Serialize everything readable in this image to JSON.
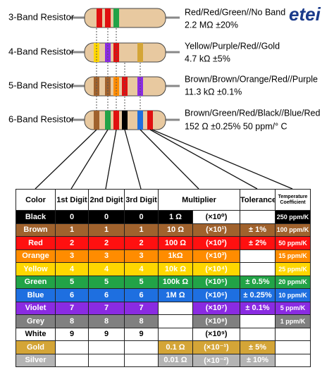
{
  "logo": "etei",
  "resistors": [
    {
      "label": "3-Band Resistor",
      "bands": "Red/Red/Green//No Band",
      "value": "2.2 MΩ ±20%"
    },
    {
      "label": "4-Band Resistor",
      "bands": "Yellow/Purple/Red//Gold",
      "value": "4.7 kΩ ±5%"
    },
    {
      "label": "5-Band Resistor",
      "bands": "Brown/Brown/Orange/Red//Purple",
      "value": "11.3 kΩ ±0.1%"
    },
    {
      "label": "6-Band Resistor",
      "bands": "Brown/Green/Red/Black//Blue/Red",
      "value": "152 Ω ±0.25% 50 ppm/° C"
    }
  ],
  "table": {
    "headers": [
      "Color",
      "1st Digit",
      "2nd Digit",
      "3rd Digit",
      "Multiplier",
      "Tolerance",
      "Temperature Coefficient"
    ],
    "rows": [
      {
        "color": "Black",
        "fill": "#000000",
        "text": "#ffffff",
        "digits": [
          "0",
          "0",
          "0"
        ],
        "multiplier": "1 Ω",
        "exponent": "(×10⁰)",
        "tolerance": null,
        "temperature": "250 ppm/K"
      },
      {
        "color": "Brown",
        "fill": "#a0622d",
        "text": "#ffffff",
        "digits": [
          "1",
          "1",
          "1"
        ],
        "multiplier": "10 Ω",
        "exponent": "(×10¹)",
        "tolerance": "± 1%",
        "temperature": "100 ppm/K"
      },
      {
        "color": "Red",
        "fill": "#ff1010",
        "text": "#ffffff",
        "digits": [
          "2",
          "2",
          "2"
        ],
        "multiplier": "100 Ω",
        "exponent": "(×10²)",
        "tolerance": "± 2%",
        "temperature": "50 ppm/K"
      },
      {
        "color": "Orange",
        "fill": "#ff8c00",
        "text": "#ffffff",
        "digits": [
          "3",
          "3",
          "3"
        ],
        "multiplier": "1kΩ",
        "exponent": "(×10³)",
        "tolerance": null,
        "temperature": "15 ppm/K"
      },
      {
        "color": "Yellow",
        "fill": "#ffd700",
        "text": "#ffffff",
        "digits": [
          "4",
          "4",
          "4"
        ],
        "multiplier": "10k Ω",
        "exponent": "(×10⁴)",
        "tolerance": null,
        "temperature": "25 ppm/K"
      },
      {
        "color": "Green",
        "fill": "#22a347",
        "text": "#ffffff",
        "digits": [
          "5",
          "5",
          "5"
        ],
        "multiplier": "100k Ω",
        "exponent": "(×10⁵)",
        "tolerance": "± 0.5%",
        "temperature": "20 ppm/K"
      },
      {
        "color": "Blue",
        "fill": "#1e6fe0",
        "text": "#ffffff",
        "digits": [
          "6",
          "6",
          "6"
        ],
        "multiplier": "1M Ω",
        "exponent": "(×10⁶)",
        "tolerance": "± 0.25%",
        "temperature": "10 ppm/K"
      },
      {
        "color": "Violet",
        "fill": "#8a2be2",
        "text": "#ffffff",
        "digits": [
          "7",
          "7",
          "7"
        ],
        "multiplier": null,
        "exponent": "(×10⁷)",
        "tolerance": "± 0.1%",
        "temperature": "5 ppm/K"
      },
      {
        "color": "Grey",
        "fill": "#808080",
        "text": "#ffffff",
        "digits": [
          "8",
          "8",
          "8"
        ],
        "multiplier": null,
        "exponent": "(×10⁸)",
        "tolerance": null,
        "temperature": "1 ppm/K"
      },
      {
        "color": "White",
        "fill": "#ffffff",
        "text": "#000000",
        "digits": [
          "9",
          "9",
          "9"
        ],
        "multiplier": null,
        "exponent": "(×10⁹)",
        "tolerance": null,
        "temperature": null
      },
      {
        "color": "Gold",
        "fill": "#d4a537",
        "text": "#ffffff",
        "digits": [
          null,
          null,
          null
        ],
        "multiplier": "0.1 Ω",
        "exponent": "(×10⁻¹)",
        "tolerance": "± 5%",
        "temperature": null
      },
      {
        "color": "Silver",
        "fill": "#b4b4b4",
        "text": "#ffffff",
        "digits": [
          null,
          null,
          null
        ],
        "multiplier": "0.01 Ω",
        "exponent": "(×10⁻²)",
        "tolerance": "± 10%",
        "temperature": null
      }
    ]
  }
}
